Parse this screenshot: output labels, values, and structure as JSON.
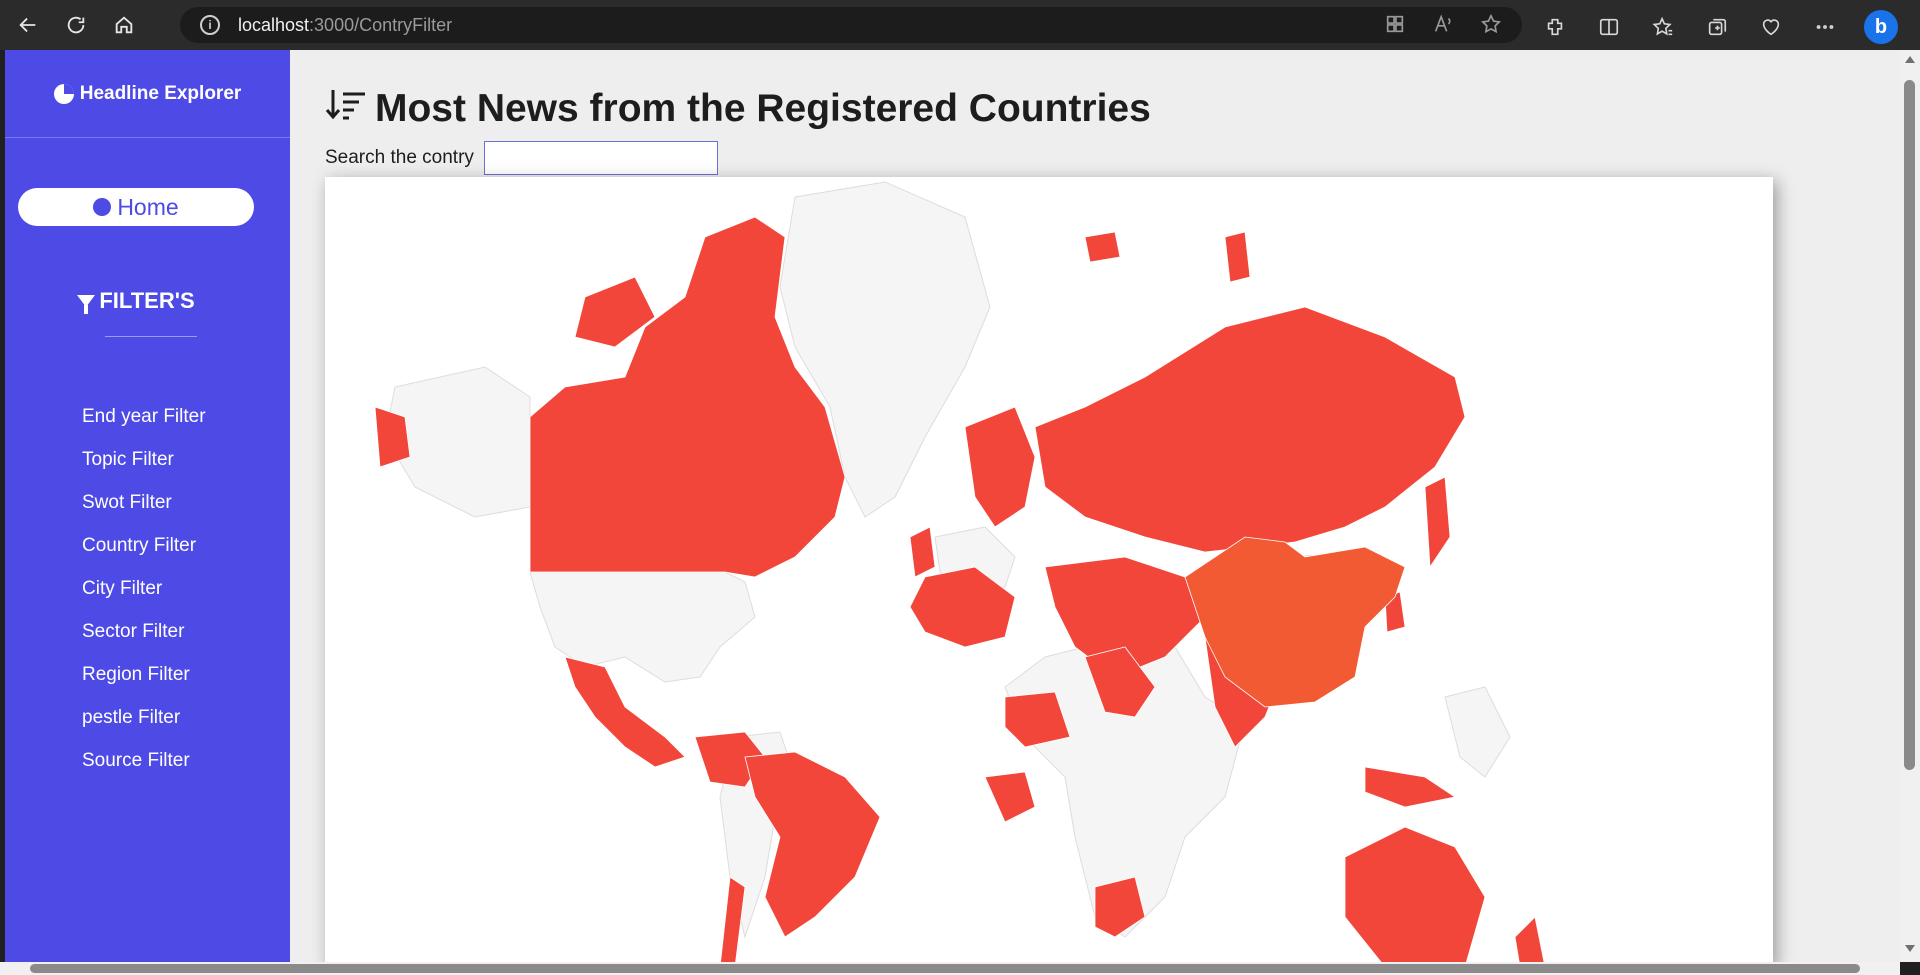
{
  "browser": {
    "url_host": "localhost",
    "url_path": ":3000/ContryFilter"
  },
  "sidebar": {
    "brand": "Headline Explorer",
    "home_label": "Home",
    "filters_heading": "FILTER'S",
    "items": [
      {
        "label": "End year Filter"
      },
      {
        "label": "Topic Filter"
      },
      {
        "label": "Swot Filter"
      },
      {
        "label": "Country Filter"
      },
      {
        "label": "City Filter"
      },
      {
        "label": "Sector Filter"
      },
      {
        "label": "Region Filter"
      },
      {
        "label": "pestle Filter"
      },
      {
        "label": "Source Filter"
      }
    ]
  },
  "main": {
    "title": "Most News from the Registered Countries",
    "search_label": "Search the contry",
    "search_value": ""
  },
  "map": {
    "highlight_color": "#f2463a",
    "top_color": "#f25a33",
    "base_color": "#f5f5f5",
    "highlighted_countries": [
      "Canada",
      "Greenland-excluded",
      "Mexico",
      "Brazil",
      "Chile",
      "Colombia",
      "Venezuela",
      "Russia",
      "China",
      "India",
      "Iran",
      "Iraq",
      "Saudi Arabia",
      "Turkey",
      "Pakistan",
      "Afghanistan",
      "Kazakhstan",
      "Japan",
      "South Korea",
      "Indonesia",
      "Australia",
      "New Zealand",
      "South Africa",
      "Nigeria",
      "Libya",
      "Egypt",
      "United Kingdom",
      "France",
      "Germany",
      "Spain",
      "Italy",
      "Norway",
      "Sweden",
      "Finland",
      "Poland",
      "Ukraine",
      "Svalbard"
    ],
    "top_country": "China"
  }
}
